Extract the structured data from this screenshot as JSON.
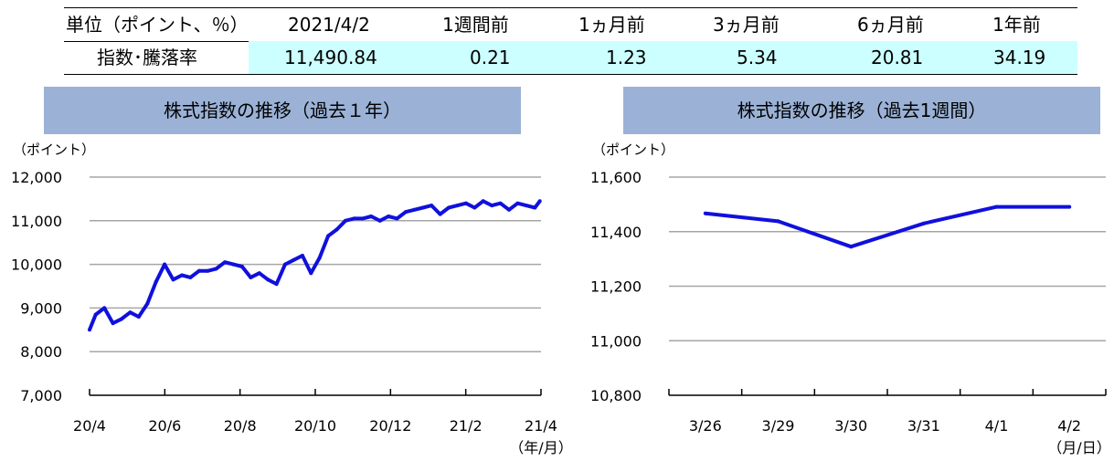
{
  "table": {
    "headers": [
      "単位（ポイント、％）",
      "2021/4/2",
      "1週間前",
      "1ヵ月前",
      "3ヵ月前",
      "6ヵ月前",
      "1年前"
    ],
    "row_label": "指数･騰落率",
    "values": [
      "11,490.84",
      "0.21",
      "1.23",
      "5.34",
      "20.81",
      "34.19"
    ]
  },
  "chart_data": [
    {
      "type": "line",
      "title": "株式指数の推移（過去１年）",
      "ylabel": "（ポイント）",
      "xlabel": "（年/月）",
      "ylim": [
        7000,
        12000
      ],
      "yticks": [
        "12,000",
        "11,000",
        "10,000",
        "9,000",
        "8,000",
        "7,000"
      ],
      "xticks": [
        "20/4",
        "20/6",
        "20/8",
        "20/10",
        "20/12",
        "21/2",
        "21/4"
      ],
      "color": "#1010dd",
      "series": [
        {
          "x": [
            "20/4/1",
            "20/4/6",
            "20/4/13",
            "20/4/20",
            "20/4/27",
            "20/5/4",
            "20/5/11",
            "20/5/18",
            "20/5/25",
            "20/6/1",
            "20/6/8",
            "20/6/15",
            "20/6/22",
            "20/6/29",
            "20/7/6",
            "20/7/13",
            "20/7/20",
            "20/7/27",
            "20/8/3",
            "20/8/10",
            "20/8/17",
            "20/8/24",
            "20/8/31",
            "20/9/7",
            "20/9/14",
            "20/9/21",
            "20/9/28",
            "20/10/5",
            "20/10/12",
            "20/10/19",
            "20/10/26",
            "20/11/2",
            "20/11/9",
            "20/11/16",
            "20/11/23",
            "20/11/30",
            "20/12/7",
            "20/12/14",
            "20/12/21",
            "20/12/28",
            "21/1/4",
            "21/1/11",
            "21/1/18",
            "21/1/25",
            "21/2/1",
            "21/2/8",
            "21/2/15",
            "21/2/22",
            "21/3/1",
            "21/3/8",
            "21/3/15",
            "21/3/22",
            "21/3/29",
            "21/4/2"
          ],
          "values": [
            8500,
            8850,
            9000,
            8650,
            8750,
            8900,
            8800,
            9100,
            9600,
            10000,
            9650,
            9750,
            9700,
            9850,
            9850,
            9900,
            10050,
            10000,
            9950,
            9700,
            9800,
            9650,
            9550,
            10000,
            10100,
            10200,
            9800,
            10150,
            10650,
            10800,
            11000,
            11050,
            11050,
            11100,
            11000,
            11100,
            11050,
            11200,
            11250,
            11300,
            11350,
            11150,
            11300,
            11350,
            11400,
            11300,
            11450,
            11350,
            11400,
            11250,
            11400,
            11350,
            11300,
            11450
          ]
        }
      ]
    },
    {
      "type": "line",
      "title": "株式指数の推移（過去1週間）",
      "ylabel": "（ポイント）",
      "xlabel": "（月/日）",
      "ylim": [
        10800,
        11600
      ],
      "yticks": [
        "11,600",
        "11,400",
        "11,200",
        "11,000",
        "10,800"
      ],
      "categories": [
        "3/26",
        "3/29",
        "3/30",
        "3/31",
        "4/1",
        "4/2"
      ],
      "color": "#1010dd",
      "series": [
        {
          "values": [
            11467,
            11438,
            11345,
            11430,
            11491,
            11491
          ]
        }
      ]
    }
  ]
}
